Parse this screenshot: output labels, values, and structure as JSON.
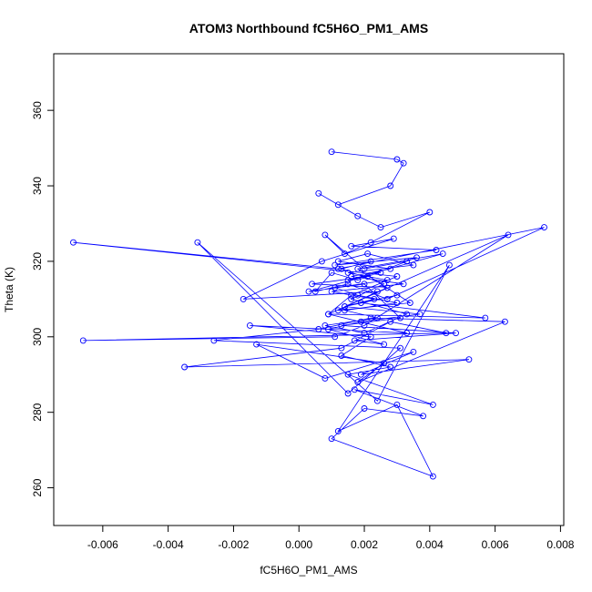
{
  "chart_data": {
    "type": "line",
    "title": "ATOM3 Northbound fC5H6O_PM1_AMS",
    "xlabel": "fC5H6O_PM1_AMS",
    "ylabel": "Theta (K)",
    "xlim": [
      -0.0075,
      0.0081
    ],
    "ylim": [
      250,
      375
    ],
    "xticks": [
      -0.006,
      -0.004,
      -0.002,
      0.0,
      0.002,
      0.004,
      0.006,
      0.008
    ],
    "xtick_labels": [
      "-0.006",
      "-0.004",
      "-0.002",
      "0.000",
      "0.002",
      "0.004",
      "0.006",
      "0.008"
    ],
    "yticks": [
      260,
      280,
      300,
      320,
      340,
      360
    ],
    "ytick_labels": [
      "260",
      "280",
      "300",
      "320",
      "340",
      "360"
    ],
    "grid": false,
    "series_color": "#0000ff",
    "markers": "open-circle",
    "series": [
      {
        "x": [
          0.001,
          0.003,
          0.0032,
          0.0028,
          0.0012,
          0.0006,
          0.0018,
          0.0025,
          0.004,
          0.0022,
          0.0014,
          0.0008,
          0.002,
          0.0033,
          0.0018,
          0.001,
          0.0005,
          0.0015,
          0.0027,
          0.0075,
          0.0012,
          -0.0069,
          0.003,
          0.0016,
          0.0009,
          0.0064,
          0.002,
          0.0011,
          -0.0066,
          0.0045,
          0.0028,
          0.0013,
          -0.0035,
          0.0052,
          0.0019,
          0.0035,
          0.0008,
          -0.0013,
          0.0026,
          0.0018,
          0.0063,
          0.0022,
          0.0006,
          -0.0026,
          0.0031,
          0.0015,
          -0.0031,
          0.0024,
          0.0046,
          0.0012,
          0.003,
          0.0041,
          0.001,
          0.002,
          0.0038,
          0.0017,
          0.0041,
          0.0015,
          0.0028,
          0.0013,
          0.0022,
          -0.0015,
          0.0033,
          0.0009,
          0.0057,
          0.0019,
          0.003,
          0.0014,
          0.0027,
          0.0004,
          0.0021,
          0.0036,
          0.0011,
          0.0042,
          0.0016,
          0.0029,
          0.0007,
          -0.0017,
          0.0024,
          0.0012,
          0.0034,
          0.0018,
          0.0044,
          0.0015,
          0.0025,
          0.0003,
          0.002,
          0.0031,
          0.0013,
          0.0048,
          0.0017,
          0.0026,
          0.0009,
          0.0019,
          0.0037,
          0.0014,
          0.0023,
          0.001,
          0.0032,
          0.0016,
          0.0028,
          0.0012,
          0.0021,
          0.0035,
          0.0015,
          0.0027,
          0.0011,
          0.0018,
          0.003,
          0.0014,
          0.0024,
          0.0008,
          0.002,
          0.0033,
          0.0016,
          0.0026,
          0.0013,
          0.0022
        ],
        "y": [
          349,
          347,
          346,
          340,
          335,
          338,
          332,
          329,
          333,
          325,
          322,
          327,
          318,
          320,
          315,
          317,
          312,
          314,
          310,
          329,
          318,
          325,
          316,
          311,
          306,
          327,
          303,
          300,
          299,
          301,
          304,
          297,
          292,
          294,
          290,
          296,
          289,
          298,
          293,
          288,
          304,
          305,
          302,
          299,
          297,
          285,
          325,
          283,
          319,
          275,
          282,
          263,
          273,
          281,
          279,
          286,
          282,
          290,
          292,
          295,
          300,
          303,
          301,
          306,
          305,
          309,
          311,
          308,
          313,
          314,
          316,
          321,
          319,
          323,
          324,
          326,
          320,
          310,
          312,
          307,
          309,
          318,
          322,
          315,
          317,
          312,
          314,
          305,
          303,
          301,
          299,
          298,
          302,
          304,
          306,
          308,
          310,
          312,
          314,
          316,
          318,
          320,
          322,
          319,
          317,
          315,
          313,
          311,
          309,
          307,
          305,
          303,
          301,
          306,
          310,
          314,
          318,
          320
        ]
      }
    ]
  }
}
